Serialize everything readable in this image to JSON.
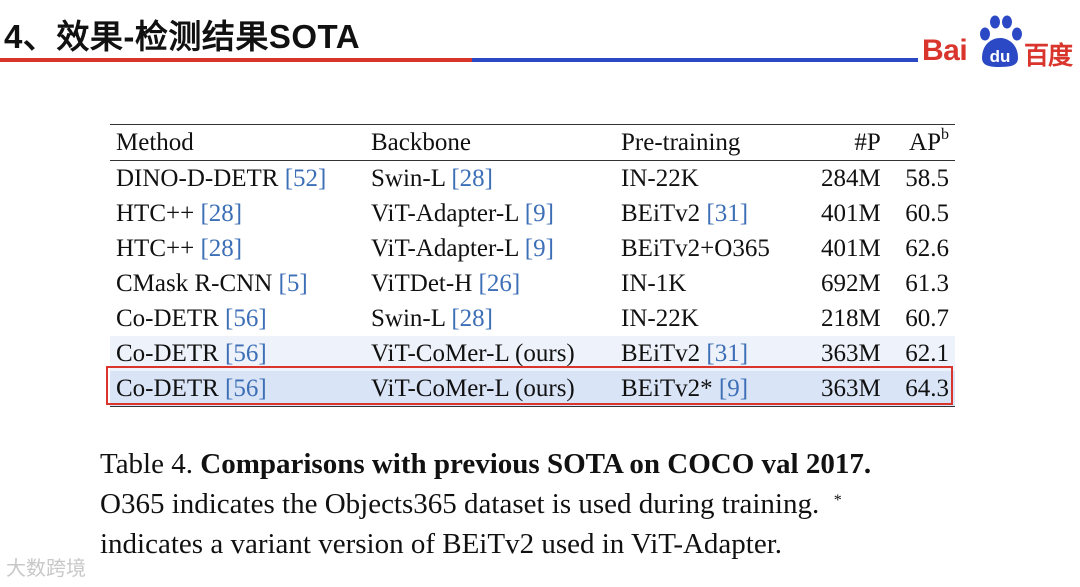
{
  "header": {
    "title": "4、效果-检测结果SOTA",
    "logo": {
      "bai": "Bai",
      "du": "du",
      "cn": "百度"
    },
    "colors": {
      "red": "#d9352c",
      "blue": "#2b49c4"
    }
  },
  "table": {
    "columns": [
      "Method",
      "Backbone",
      "Pre-training",
      "#P",
      "AP"
    ],
    "ap_sup": "b",
    "rows": [
      {
        "method": "DINO-D-DETR",
        "method_ref": "[52]",
        "backbone": "Swin-L",
        "backbone_ref": "[28]",
        "pretrain": "IN-22K",
        "pretrain_ref": "",
        "params": "284M",
        "ap": "58.5"
      },
      {
        "method": "HTC++",
        "method_ref": "[28]",
        "backbone": "ViT-Adapter-L",
        "backbone_ref": "[9]",
        "pretrain": "BEiTv2",
        "pretrain_ref": "[31]",
        "params": "401M",
        "ap": "60.5"
      },
      {
        "method": "HTC++",
        "method_ref": "[28]",
        "backbone": "ViT-Adapter-L",
        "backbone_ref": "[9]",
        "pretrain": "BEiTv2+O365",
        "pretrain_ref": "",
        "params": "401M",
        "ap": "62.6"
      },
      {
        "method": "CMask R-CNN",
        "method_ref": "[5]",
        "backbone": "ViTDet-H",
        "backbone_ref": "[26]",
        "pretrain": "IN-1K",
        "pretrain_ref": "",
        "params": "692M",
        "ap": "61.3"
      },
      {
        "method": "Co-DETR",
        "method_ref": "[56]",
        "backbone": "Swin-L",
        "backbone_ref": "[28]",
        "pretrain": "IN-22K",
        "pretrain_ref": "",
        "params": "218M",
        "ap": "60.7"
      },
      {
        "method": "Co-DETR",
        "method_ref": "[56]",
        "backbone": "ViT-CoMer-L (ours)",
        "backbone_ref": "",
        "pretrain": "BEiTv2",
        "pretrain_ref": "[31]",
        "params": "363M",
        "ap": "62.1"
      },
      {
        "method": "Co-DETR",
        "method_ref": "[56]",
        "backbone": "ViT-CoMer-L (ours)",
        "backbone_ref": "",
        "pretrain": "BEiTv2*",
        "pretrain_ref": "[9]",
        "params": "363M",
        "ap": "64.3"
      }
    ]
  },
  "caption": {
    "label": "Table 4.",
    "bold": "Comparisons with previous SOTA on COCO val 2017.",
    "line2": "O365 indicates the Objects365 dataset is used during training.",
    "line2_star": "*",
    "line3": "indicates a variant version of BEiTv2 used in ViT-Adapter."
  },
  "watermark": "大数跨境"
}
